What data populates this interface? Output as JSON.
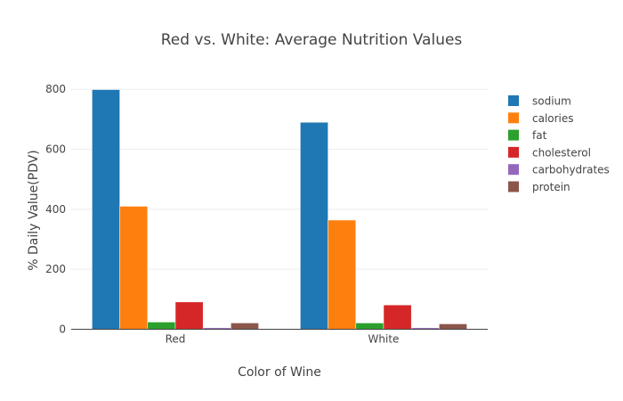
{
  "chart_data": {
    "type": "bar",
    "title": "Red vs. White: Average Nutrition Values",
    "xlabel": "Color of Wine",
    "ylabel": "% Daily Value(PDV)",
    "categories": [
      "Red",
      "White"
    ],
    "ylim": [
      0,
      860
    ],
    "yticks": [
      0,
      200,
      400,
      600,
      800
    ],
    "grid": true,
    "legend_position": "right",
    "series": [
      {
        "name": "sodium",
        "color": "#1f77b4",
        "values": [
          799,
          690
        ]
      },
      {
        "name": "calories",
        "color": "#ff7f0e",
        "values": [
          410,
          364
        ]
      },
      {
        "name": "fat",
        "color": "#2ca02c",
        "values": [
          24,
          21
        ]
      },
      {
        "name": "cholesterol",
        "color": "#d62728",
        "values": [
          91,
          81
        ]
      },
      {
        "name": "carbohydrates",
        "color": "#9467bd",
        "values": [
          5,
          5
        ]
      },
      {
        "name": "protein",
        "color": "#8c564b",
        "values": [
          21,
          18
        ]
      }
    ]
  }
}
